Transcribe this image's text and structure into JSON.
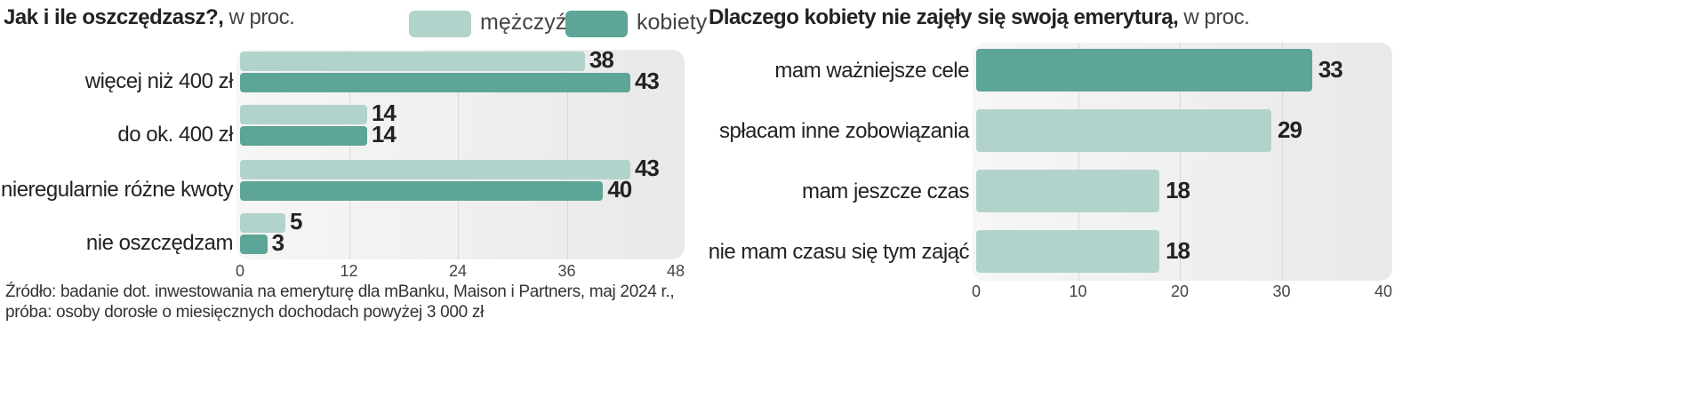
{
  "colors": {
    "men": "#b2d3cb",
    "women": "#5da596",
    "light": "#b2d3cb"
  },
  "chart_data": [
    {
      "type": "bar",
      "orientation": "horizontal",
      "title": "Jak i ile oszczędzasz?,",
      "subtitle": "w proc.",
      "categories": [
        "więcej niż 400 zł",
        "do ok. 400 zł",
        "nieregularnie różne kwoty",
        "nie oszczędzam"
      ],
      "series": [
        {
          "name": "mężczyźni",
          "values": [
            38,
            14,
            43,
            5
          ]
        },
        {
          "name": "kobiety",
          "values": [
            43,
            14,
            40,
            3
          ]
        }
      ],
      "xlim": [
        0,
        48
      ],
      "xticks": [
        "0",
        "12",
        "24",
        "36",
        "48"
      ],
      "grid": true,
      "legend": "top"
    },
    {
      "type": "bar",
      "orientation": "horizontal",
      "title": "Dlaczego kobiety nie zajęły się swoją emeryturą,",
      "subtitle": "w proc.",
      "categories": [
        "mam ważniejsze cele",
        "spłacam inne zobowiązania",
        "mam jeszcze czas",
        "nie mam czasu się tym zająć"
      ],
      "values": [
        33,
        29,
        18,
        18
      ],
      "highlight": [
        true,
        false,
        false,
        false
      ],
      "xlim": [
        0,
        40
      ],
      "xticks": [
        "0",
        "10",
        "20",
        "30",
        "40"
      ],
      "grid": true
    }
  ],
  "footer": {
    "line1": "Źródło: badanie dot. inwestowania na emeryturę dla mBanku, Maison i Partners, maj 2024 r.,",
    "line2": "próba: osoby dorosłe o miesięcznych dochodach powyżej 3 000 zł"
  }
}
